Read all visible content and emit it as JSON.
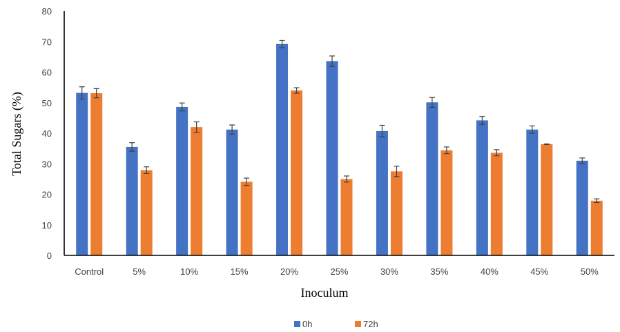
{
  "chart_data": {
    "type": "bar",
    "title": "",
    "xlabel": "Inoculum",
    "ylabel": "Total Sugars (%)",
    "ylim": [
      0,
      80
    ],
    "yticks": [
      0,
      10,
      20,
      30,
      40,
      50,
      60,
      70,
      80
    ],
    "grid": false,
    "legend_position": "bottom",
    "categories": [
      "Control",
      "5%",
      "10%",
      "15%",
      "20%",
      "25%",
      "30%",
      "35%",
      "40%",
      "45%",
      "50%"
    ],
    "series": [
      {
        "name": "0h",
        "color": "#4472C4",
        "values": [
          53.2,
          35.5,
          48.6,
          41.2,
          69.2,
          63.6,
          40.7,
          50.1,
          44.2,
          41.2,
          31.0
        ],
        "errors": [
          2.0,
          1.4,
          1.3,
          1.5,
          1.2,
          1.7,
          1.9,
          1.6,
          1.3,
          1.2,
          0.9
        ]
      },
      {
        "name": "72h",
        "color": "#ED7D31",
        "values": [
          53.1,
          27.9,
          42.0,
          24.1,
          54.0,
          25.0,
          27.5,
          34.4,
          33.6,
          36.4,
          17.9
        ],
        "errors": [
          1.5,
          1.1,
          1.7,
          1.2,
          0.9,
          1.0,
          1.7,
          1.1,
          1.0,
          0.1,
          0.6
        ]
      }
    ]
  }
}
